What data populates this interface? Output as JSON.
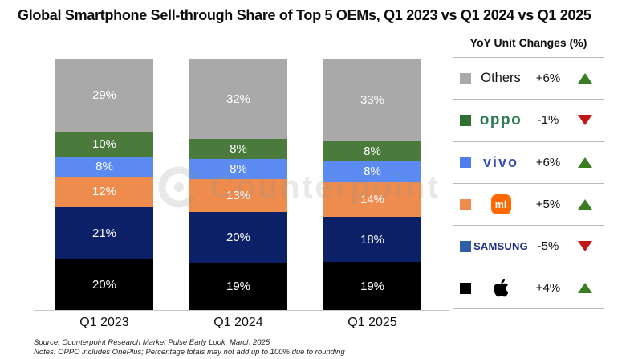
{
  "title": "Global Smartphone Sell-through Share of Top 5 OEMs, Q1 2023 vs Q1 2024 vs Q1 2025",
  "watermark": "Counterpoint",
  "chart_data": {
    "type": "bar",
    "stacked": true,
    "title": "Global Smartphone Sell-through Share of Top 5 OEMs, Q1 2023 vs Q1 2024 vs Q1 2025",
    "categories": [
      "Q1 2023",
      "Q1 2024",
      "Q1 2025"
    ],
    "unit": "%",
    "ylim": [
      0,
      100
    ],
    "legend_position": "right",
    "series": [
      {
        "name": "Apple",
        "color": "#000000",
        "values": [
          20,
          19,
          19
        ]
      },
      {
        "name": "Samsung",
        "color": "#0b2066",
        "values": [
          21,
          20,
          18
        ]
      },
      {
        "name": "Xiaomi",
        "color": "#ee8c4d",
        "values": [
          12,
          13,
          14
        ]
      },
      {
        "name": "vivo",
        "color": "#5b8bf0",
        "values": [
          8,
          8,
          8
        ]
      },
      {
        "name": "OPPO",
        "color": "#4a7b3c",
        "values": [
          10,
          8,
          8
        ]
      },
      {
        "name": "Others",
        "color": "#a9a9a9",
        "values": [
          29,
          32,
          33
        ]
      }
    ]
  },
  "legend": {
    "header": "YoY Unit Changes (%)",
    "rows": [
      {
        "brand": "others",
        "label": "Others",
        "logo_text": "Others",
        "swatch": "#a9a9a9",
        "change": "+6%",
        "direction": "up"
      },
      {
        "brand": "oppo",
        "label": "OPPO",
        "logo_text": "oppo",
        "swatch": "#2e7030",
        "change": "-1%",
        "direction": "down"
      },
      {
        "brand": "vivo",
        "label": "vivo",
        "logo_text": "vivo",
        "swatch": "#4f7ef0",
        "change": "+6%",
        "direction": "up"
      },
      {
        "brand": "mi",
        "label": "Xiaomi",
        "logo_text": "mi",
        "swatch": "#ee8c4d",
        "change": "+5%",
        "direction": "up"
      },
      {
        "brand": "samsung",
        "label": "Samsung",
        "logo_text": "SAMSUNG",
        "swatch": "#2f5fa8",
        "change": "-5%",
        "direction": "down"
      },
      {
        "brand": "apple",
        "label": "Apple",
        "logo_text": "",
        "swatch": "#000000",
        "change": "+4%",
        "direction": "up"
      }
    ],
    "colors": {
      "up": "#3a7d23",
      "down": "#c11616"
    }
  },
  "footer": {
    "source": "Source: Counterpoint Research Market Pulse Early Look, March 2025",
    "notes": "Notes: OPPO includes OnePlus; Percentage totals may not add up to 100% due to rounding"
  }
}
